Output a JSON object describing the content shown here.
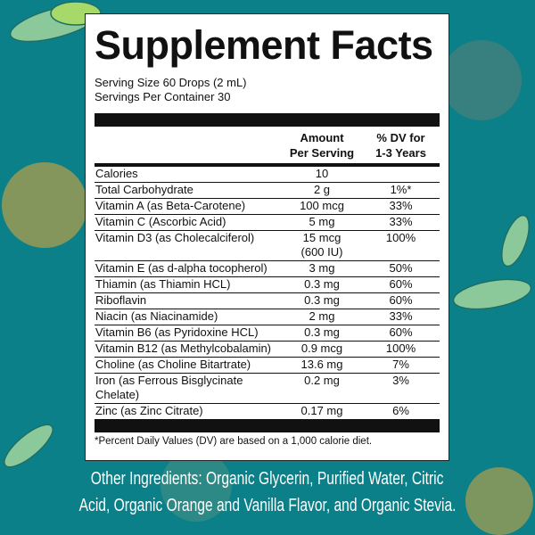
{
  "colors": {
    "background": "#0b8088",
    "panel": "#ffffff",
    "text": "#111111",
    "leaf": "#8cc99a",
    "fruit": "#9a9a55"
  },
  "label": {
    "title": "Supplement Facts",
    "serving_size": "Serving Size 60 Drops (2 mL)",
    "servings_per_container": "Servings Per Container 30",
    "col_amount_1": "Amount",
    "col_amount_2": "Per Serving",
    "col_dv_1": "% DV for",
    "col_dv_2": "1-3 Years",
    "rows": [
      {
        "name": "Calories",
        "amount": "10",
        "dv": ""
      },
      {
        "name": "Total Carbohydrate",
        "amount": "2 g",
        "dv": "1%*"
      },
      {
        "name": "Vitamin A (as Beta-Carotene)",
        "amount": "100 mcg",
        "dv": "33%"
      },
      {
        "name": "Vitamin C (Ascorbic Acid)",
        "amount": "5 mg",
        "dv": "33%"
      },
      {
        "name": "Vitamin D3 (as Cholecalciferol)",
        "amount": "15 mcg",
        "amount2": "(600 IU)",
        "dv": "100%"
      },
      {
        "name": "Vitamin E (as d-alpha tocopherol)",
        "amount": "3 mg",
        "dv": "50%"
      },
      {
        "name": "Thiamin (as Thiamin HCL)",
        "amount": "0.3 mg",
        "dv": "60%"
      },
      {
        "name": "Riboflavin",
        "amount": "0.3 mg",
        "dv": "60%"
      },
      {
        "name": "Niacin (as Niacinamide)",
        "amount": "2 mg",
        "dv": "33%"
      },
      {
        "name": "Vitamin B6 (as Pyridoxine HCL)",
        "amount": "0.3 mg",
        "dv": "60%"
      },
      {
        "name": "Vitamin B12 (as Methylcobalamin)",
        "amount": "0.9 mcg",
        "dv": "100%"
      },
      {
        "name": "Choline (as Choline Bitartrate)",
        "amount": "13.6 mg",
        "dv": "7%"
      },
      {
        "name": "Iron (as Ferrous Bisglycinate",
        "name2": "Chelate)",
        "amount": "0.2 mg",
        "dv": "3%"
      },
      {
        "name": "Zinc (as Zinc Citrate)",
        "amount": "0.17 mg",
        "dv": "6%"
      }
    ],
    "footnote": "*Percent Daily Values (DV) are based on a 1,000 calorie diet."
  },
  "other_ingredients": {
    "line1": "Other Ingredients: Organic Glycerin, Purified Water, Citric",
    "line2": "Acid, Organic Orange and Vanilla Flavor, and Organic Stevia."
  }
}
